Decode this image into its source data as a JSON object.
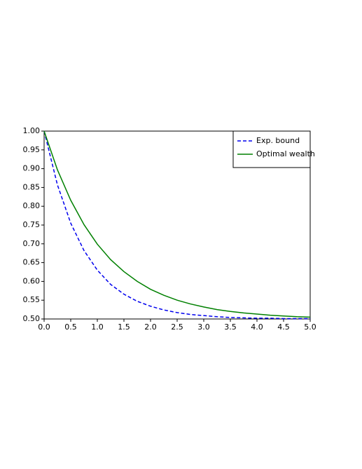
{
  "chart_data": {
    "type": "line",
    "x": [
      0,
      0.25,
      0.5,
      0.75,
      1,
      1.25,
      1.5,
      1.75,
      2,
      2.25,
      2.5,
      2.75,
      3,
      3.25,
      3.5,
      3.75,
      4,
      4.25,
      4.5,
      4.75,
      5
    ],
    "series": [
      {
        "name": "Exp. bound",
        "color": "#0000ee",
        "linestyle": "dashed",
        "values": [
          1.0,
          0.857,
          0.755,
          0.682,
          0.63,
          0.592,
          0.566,
          0.547,
          0.534,
          0.524,
          0.517,
          0.512,
          0.509,
          0.506,
          0.504,
          0.503,
          0.502,
          0.502,
          0.501,
          0.501,
          0.501
        ]
      },
      {
        "name": "Optimal wealth",
        "color": "#008000",
        "linestyle": "solid",
        "values": [
          1.0,
          0.897,
          0.816,
          0.751,
          0.699,
          0.658,
          0.626,
          0.6,
          0.579,
          0.563,
          0.55,
          0.54,
          0.532,
          0.525,
          0.52,
          0.516,
          0.513,
          0.51,
          0.508,
          0.506,
          0.505
        ]
      }
    ],
    "xlim": [
      0,
      5
    ],
    "xticks": [
      {
        "value": 0,
        "label": "0.0"
      },
      {
        "value": 0.5,
        "label": "0.5"
      },
      {
        "value": 1,
        "label": "1.0"
      },
      {
        "value": 1.5,
        "label": "1.5"
      },
      {
        "value": 2,
        "label": "2.0"
      },
      {
        "value": 2.5,
        "label": "2.5"
      },
      {
        "value": 3,
        "label": "3.0"
      },
      {
        "value": 3.5,
        "label": "3.5"
      },
      {
        "value": 4,
        "label": "4.0"
      },
      {
        "value": 4.5,
        "label": "4.5"
      },
      {
        "value": 5,
        "label": "5.0"
      }
    ],
    "ylim": [
      0.5,
      1
    ],
    "yticks": [
      {
        "value": 0.5,
        "label": "0.50"
      },
      {
        "value": 0.55,
        "label": "0.55"
      },
      {
        "value": 0.6,
        "label": "0.60"
      },
      {
        "value": 0.65,
        "label": "0.65"
      },
      {
        "value": 0.7,
        "label": "0.70"
      },
      {
        "value": 0.75,
        "label": "0.75"
      },
      {
        "value": 0.8,
        "label": "0.80"
      },
      {
        "value": 0.85,
        "label": "0.85"
      },
      {
        "value": 0.9,
        "label": "0.90"
      },
      {
        "value": 0.95,
        "label": "0.95"
      },
      {
        "value": 1,
        "label": "1.00"
      }
    ],
    "legend": "upper right"
  }
}
